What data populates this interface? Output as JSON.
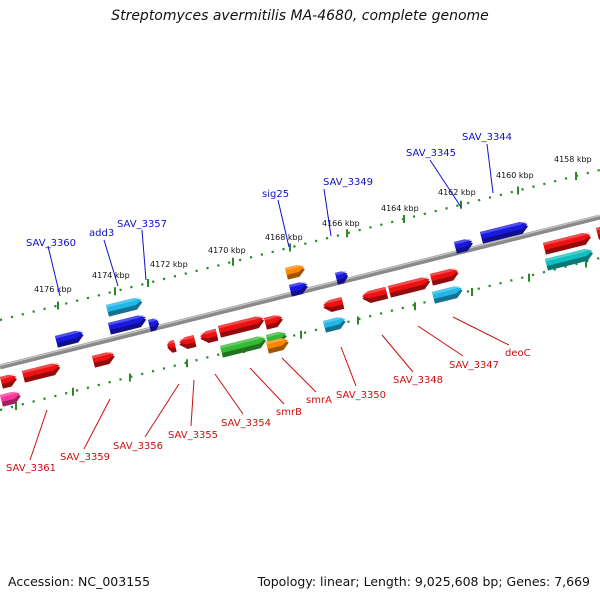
{
  "title": "Streptomyces avermitilis MA-4680, complete genome",
  "accession": "Accession: NC_003155",
  "summary": "Topology: linear; Length: 9,025,608 bp; Genes: 7,669",
  "ticks": [
    "4176 kbp",
    "4174 kbp",
    "4172 kbp",
    "4170 kbp",
    "4168 kbp",
    "4166 kbp",
    "4164 kbp",
    "4162 kbp",
    "4160 kbp",
    "4158 kbp"
  ],
  "labels_top": [
    "SAV_3360",
    "add3",
    "SAV_3357",
    "sig25",
    "SAV_3349",
    "SAV_3345",
    "SAV_3344"
  ],
  "labels_bottom": [
    "SAV_3361",
    "SAV_3359",
    "SAV_3356",
    "SAV_3355",
    "SAV_3354",
    "smrB",
    "smrA",
    "SAV_3350",
    "SAV_3348",
    "SAV_3347",
    "deoC"
  ],
  "colors": {
    "red": "#ee1111",
    "blue": "#1818e0",
    "cyan": "#20b8e8",
    "teal": "#10c0c0",
    "green": "#33bb33",
    "orange": "#ff8800",
    "pink": "#ff3399",
    "tick": "#2a8a2a",
    "backbone": "#888888",
    "label_top": "#1010c8",
    "label_bottom": "#cc1010"
  }
}
